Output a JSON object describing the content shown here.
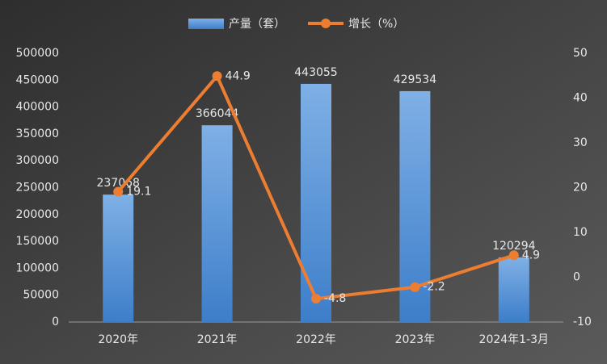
{
  "chart_data": {
    "type": "combo",
    "categories": [
      "2020年",
      "2021年",
      "2022年",
      "2023年",
      "2024年1-3月"
    ],
    "series": [
      {
        "name": "产量（套）",
        "type": "bar",
        "color": "#5b9bd5",
        "values": [
          237068,
          366044,
          443055,
          429534,
          120294
        ]
      },
      {
        "name": "增长（%）",
        "type": "line",
        "axis": "y2",
        "color": "#ed7d31",
        "values": [
          19.1,
          44.9,
          -4.8,
          -2.2,
          4.9
        ]
      }
    ],
    "ylim": [
      0,
      500000
    ],
    "yticks": [
      0,
      50000,
      100000,
      150000,
      200000,
      250000,
      300000,
      350000,
      400000,
      450000,
      500000
    ],
    "y2lim": [
      -10,
      50
    ],
    "y2ticks": [
      -10,
      0,
      10,
      20,
      30,
      40,
      50
    ],
    "legend": "top"
  }
}
